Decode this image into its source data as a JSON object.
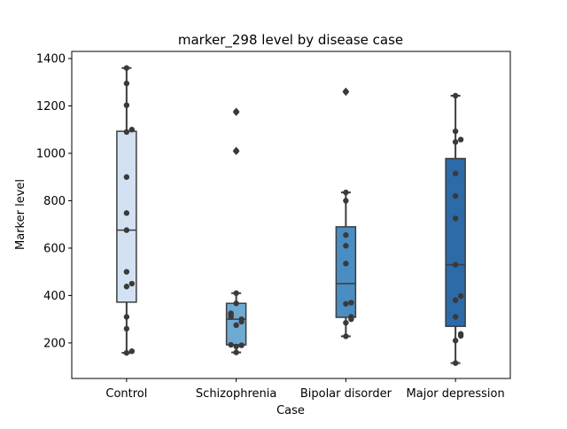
{
  "chart_data": {
    "type": "box",
    "title": "marker_298 level by disease case",
    "xlabel": "Case",
    "ylabel": "Marker level",
    "ylim": [
      50,
      1430
    ],
    "yticks": [
      200,
      400,
      600,
      800,
      1000,
      1200,
      1400
    ],
    "grid": false,
    "categories": [
      "Control",
      "Schizophrenia",
      "Bipolar disorder",
      "Major depression"
    ],
    "box_colors": [
      "#d3e2f3",
      "#6faad3",
      "#4a8dc2",
      "#2c6aa8"
    ],
    "boxes": [
      {
        "category": "Control",
        "whisker_low": 158,
        "q1": 372,
        "median": 676,
        "q3": 1093,
        "whisker_high": 1360,
        "outliers": []
      },
      {
        "category": "Schizophrenia",
        "whisker_low": 160,
        "q1": 192,
        "median": 300,
        "q3": 367,
        "whisker_high": 410,
        "outliers": [
          1010,
          1175
        ]
      },
      {
        "category": "Bipolar disorder",
        "whisker_low": 228,
        "q1": 308,
        "median": 450,
        "q3": 690,
        "whisker_high": 835,
        "outliers": [
          1260
        ]
      },
      {
        "category": "Major depression",
        "whisker_low": 115,
        "q1": 270,
        "median": 530,
        "q3": 978,
        "whisker_high": 1243,
        "outliers": []
      }
    ],
    "points": [
      [
        158,
        165,
        260,
        310,
        438,
        450,
        500,
        676,
        748,
        900,
        1090,
        1100,
        1203,
        1295,
        1360
      ],
      [
        160,
        185,
        190,
        192,
        275,
        290,
        300,
        310,
        320,
        325,
        367,
        410,
        1010,
        1175
      ],
      [
        228,
        285,
        300,
        310,
        365,
        370,
        535,
        610,
        655,
        800,
        835,
        1260
      ],
      [
        115,
        210,
        230,
        238,
        310,
        380,
        398,
        530,
        725,
        820,
        915,
        1048,
        1058,
        1093,
        1243
      ]
    ]
  }
}
